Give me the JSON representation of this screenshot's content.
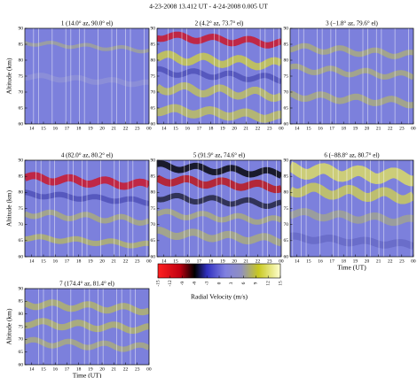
{
  "title": "4-23-2008 13.412 UT - 4-24-2008 0.005 UT",
  "colorbar": {
    "label": "Radial Velocity (m/s)",
    "lim": [
      -15,
      15
    ],
    "ticks": [
      -15,
      -12,
      -9,
      -6,
      -3,
      0,
      3,
      6,
      9,
      12,
      15
    ]
  },
  "chart_data": [
    {
      "type": "heatmap",
      "title": "1 (14.0° az, 90.0° el)",
      "ylabel": "Altitude (km)",
      "xlim": [
        13.412,
        24.005
      ],
      "xticks": [
        14,
        15,
        16,
        17,
        18,
        19,
        20,
        21,
        22,
        23,
        {
          "value": 24,
          "label": "00"
        }
      ],
      "ylim": [
        60,
        90
      ],
      "yticks": [
        60,
        65,
        70,
        75,
        80,
        85,
        90
      ]
    },
    {
      "type": "heatmap",
      "title": "2 (4.2° az, 73.7° el)",
      "xlim": [
        13.412,
        24.005
      ],
      "xticks": [
        14,
        15,
        16,
        17,
        18,
        19,
        20,
        21,
        22,
        23,
        {
          "value": 24,
          "label": "00"
        }
      ],
      "ylim": [
        60,
        90
      ],
      "yticks": [
        60,
        65,
        70,
        75,
        80,
        85,
        90
      ]
    },
    {
      "type": "heatmap",
      "title": "3 (−1.8° az, 79.6° el)",
      "xlim": [
        13.412,
        24.005
      ],
      "xticks": [
        14,
        15,
        16,
        17,
        18,
        19,
        20,
        21,
        22,
        23,
        {
          "value": 24,
          "label": "00"
        }
      ],
      "ylim": [
        60,
        90
      ],
      "yticks": [
        60,
        65,
        70,
        75,
        80,
        85,
        90
      ]
    },
    {
      "type": "heatmap",
      "title": "4 (82.0° az, 80.2° el)",
      "ylabel": "Altitude (km)",
      "xlim": [
        13.412,
        24.005
      ],
      "xticks": [
        14,
        15,
        16,
        17,
        18,
        19,
        20,
        21,
        22,
        23,
        {
          "value": 24,
          "label": "00"
        }
      ],
      "ylim": [
        60,
        90
      ],
      "yticks": [
        60,
        65,
        70,
        75,
        80,
        85,
        90
      ]
    },
    {
      "type": "heatmap",
      "title": "5 (91.9° az, 74.6° el)",
      "xlim": [
        13.412,
        24.005
      ],
      "xticks": [
        14,
        15,
        16,
        17,
        18,
        19,
        20,
        21,
        22,
        23,
        {
          "value": 24,
          "label": "00"
        }
      ],
      "ylim": [
        60,
        90
      ],
      "yticks": [
        60,
        65,
        70,
        75,
        80,
        85,
        90
      ]
    },
    {
      "type": "heatmap",
      "title": "6 (−88.8° az, 80.7° el)",
      "xlabel": "Time (UT)",
      "xlim": [
        13.412,
        24.005
      ],
      "xticks": [
        14,
        15,
        16,
        17,
        18,
        19,
        20,
        21,
        22,
        23,
        {
          "value": 24,
          "label": "00"
        }
      ],
      "ylim": [
        60,
        90
      ],
      "yticks": [
        60,
        65,
        70,
        75,
        80,
        85,
        90
      ]
    },
    {
      "type": "heatmap",
      "title": "7 (174.4° az, 81.4° el)",
      "ylabel": "Altitude (km)",
      "xlabel": "Time (UT)",
      "xlim": [
        13.412,
        24.005
      ],
      "xticks": [
        14,
        15,
        16,
        17,
        18,
        19,
        20,
        21,
        22,
        23,
        {
          "value": 24,
          "label": "00"
        }
      ],
      "ylim": [
        60,
        90
      ],
      "yticks": [
        60,
        65,
        70,
        75,
        80,
        85,
        90
      ]
    }
  ]
}
